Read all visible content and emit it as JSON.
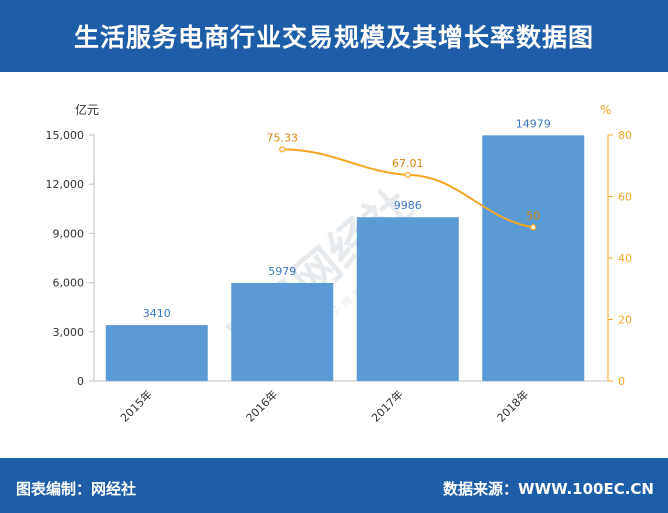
{
  "header": {
    "title": "生活服务电商行业交易规模及其增长率数据图"
  },
  "footer": {
    "source_left": "图表编制：网经社",
    "source_right": "数据来源：WWW.100EC.CN"
  },
  "watermark": {
    "text": "WS网经社",
    "subtext": "网 经 社 电 子 商 务 研 究 中 心"
  },
  "colors": {
    "header": "#1e5ea8",
    "bar": "#5b9bd5",
    "line": "#f5a623",
    "axis_left": "#333333",
    "axis_right": "#f5a623"
  },
  "chart_data": {
    "type": "bar",
    "categories": [
      "2015年",
      "2016年",
      "2017年",
      "2018年"
    ],
    "series": [
      {
        "type": "bar",
        "values": [
          3410,
          5979,
          9986,
          14979
        ],
        "data_labels": [
          "3410",
          "5979",
          "9986",
          "14979"
        ]
      },
      {
        "type": "line",
        "values": [
          null,
          75.33,
          67.01,
          50
        ],
        "data_labels": [
          "",
          "75.33",
          "67.01",
          "50"
        ]
      }
    ],
    "ylabel": "亿元",
    "ylabel_right": "%",
    "ylim": [
      0,
      15000
    ],
    "ylim_right": [
      0,
      80
    ],
    "yticks": [
      "0",
      "3,000",
      "6,000",
      "9,000",
      "12,000",
      "15,000"
    ],
    "yticks_right": [
      "0",
      "20",
      "40",
      "60",
      "80"
    ],
    "grid": false,
    "legend": "none"
  }
}
